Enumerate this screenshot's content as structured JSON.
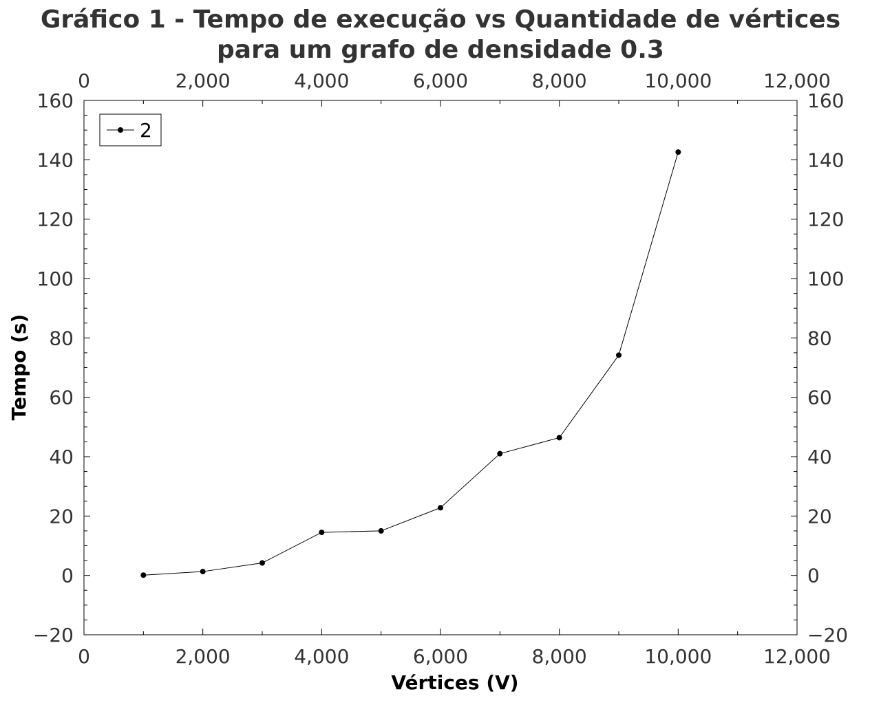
{
  "chart_data": {
    "type": "line",
    "title_lines": [
      "Gráfico 1 - Tempo de execução vs Quantidade de vértices",
      "para um grafo de densidade 0.3"
    ],
    "xlabel": "Vértices (V)",
    "ylabel": "Tempo (s)",
    "xlim": [
      0,
      12000
    ],
    "ylim": [
      -20,
      160
    ],
    "x_ticks": [
      0,
      2000,
      4000,
      6000,
      8000,
      10000,
      12000
    ],
    "x_tick_labels": [
      "0",
      "2,000",
      "4,000",
      "6,000",
      "8,000",
      "10,000",
      "12,000"
    ],
    "y_ticks": [
      -20,
      0,
      20,
      40,
      60,
      80,
      100,
      120,
      140,
      160
    ],
    "y_tick_labels": [
      "−20",
      "0",
      "20",
      "40",
      "60",
      "80",
      "100",
      "120",
      "140",
      "160"
    ],
    "mirror_axes": true,
    "grid": false,
    "legend_position": "top-left",
    "series": [
      {
        "name": "2",
        "color": "#000000",
        "x": [
          1000,
          2000,
          3000,
          4000,
          5000,
          6000,
          7000,
          8000,
          9000,
          10000
        ],
        "y": [
          0.1,
          1.3,
          4.2,
          14.5,
          15.0,
          22.8,
          41.0,
          46.4,
          74.2,
          142.6
        ]
      }
    ]
  }
}
